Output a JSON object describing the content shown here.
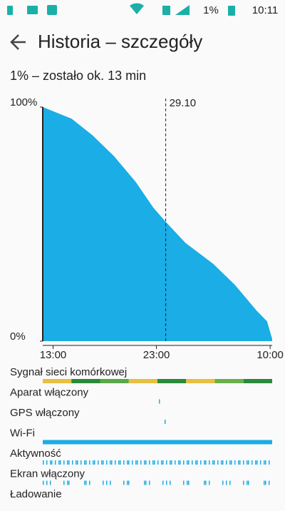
{
  "status_bar": {
    "battery": "1%",
    "time": "10:11"
  },
  "header": {
    "title": "Historia – szczegóły"
  },
  "summary": "1% – zostało ok. 13 min",
  "chart_data": {
    "type": "area",
    "color": "#1aade6",
    "x": [
      -1,
      1.8,
      3.8,
      5.9,
      8.0,
      9.7,
      10.9,
      12.8,
      15.5,
      17.6,
      19.7,
      20.7,
      21.2
    ],
    "values": [
      100,
      95,
      88,
      79,
      68,
      57,
      51,
      42,
      33,
      24,
      13,
      8.5,
      1
    ],
    "xlim": [
      -1,
      21.2
    ],
    "ylim": [
      0,
      100
    ],
    "xticks": [
      {
        "value": 0,
        "label": "13:00"
      },
      {
        "value": 10,
        "label": "23:00"
      },
      {
        "value": 21,
        "label": "10:00"
      }
    ],
    "yticks": [
      {
        "value": 0,
        "label": "0%"
      },
      {
        "value": 100,
        "label": "100%"
      }
    ],
    "marker": {
      "x": 10.9,
      "label": "29.10"
    }
  },
  "tracks": [
    {
      "label": "Sygnał sieci komórkowej"
    },
    {
      "label": "Aparat włączony"
    },
    {
      "label": "GPS włączony"
    },
    {
      "label": "Wi-Fi"
    },
    {
      "label": "Aktywność"
    },
    {
      "label": "Ekran włączony"
    },
    {
      "label": "Ładowanie"
    }
  ]
}
